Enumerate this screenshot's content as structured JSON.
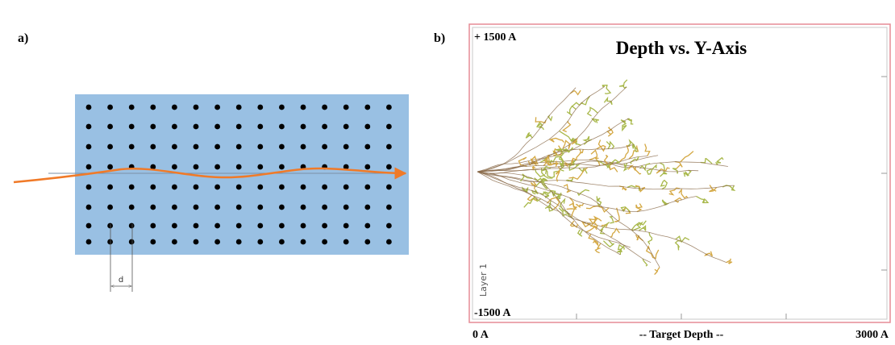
{
  "panel_a": {
    "label": "a)",
    "dimension": "d"
  },
  "panel_b": {
    "label": "b)",
    "title": "Depth vs. Y-Axis",
    "y_top": "+ 1500 A",
    "y_bottom": "-1500 A",
    "x_left": "0 A",
    "x_center": "-- Target Depth --",
    "x_right": "3000 A",
    "layer": "Layer 1"
  }
}
